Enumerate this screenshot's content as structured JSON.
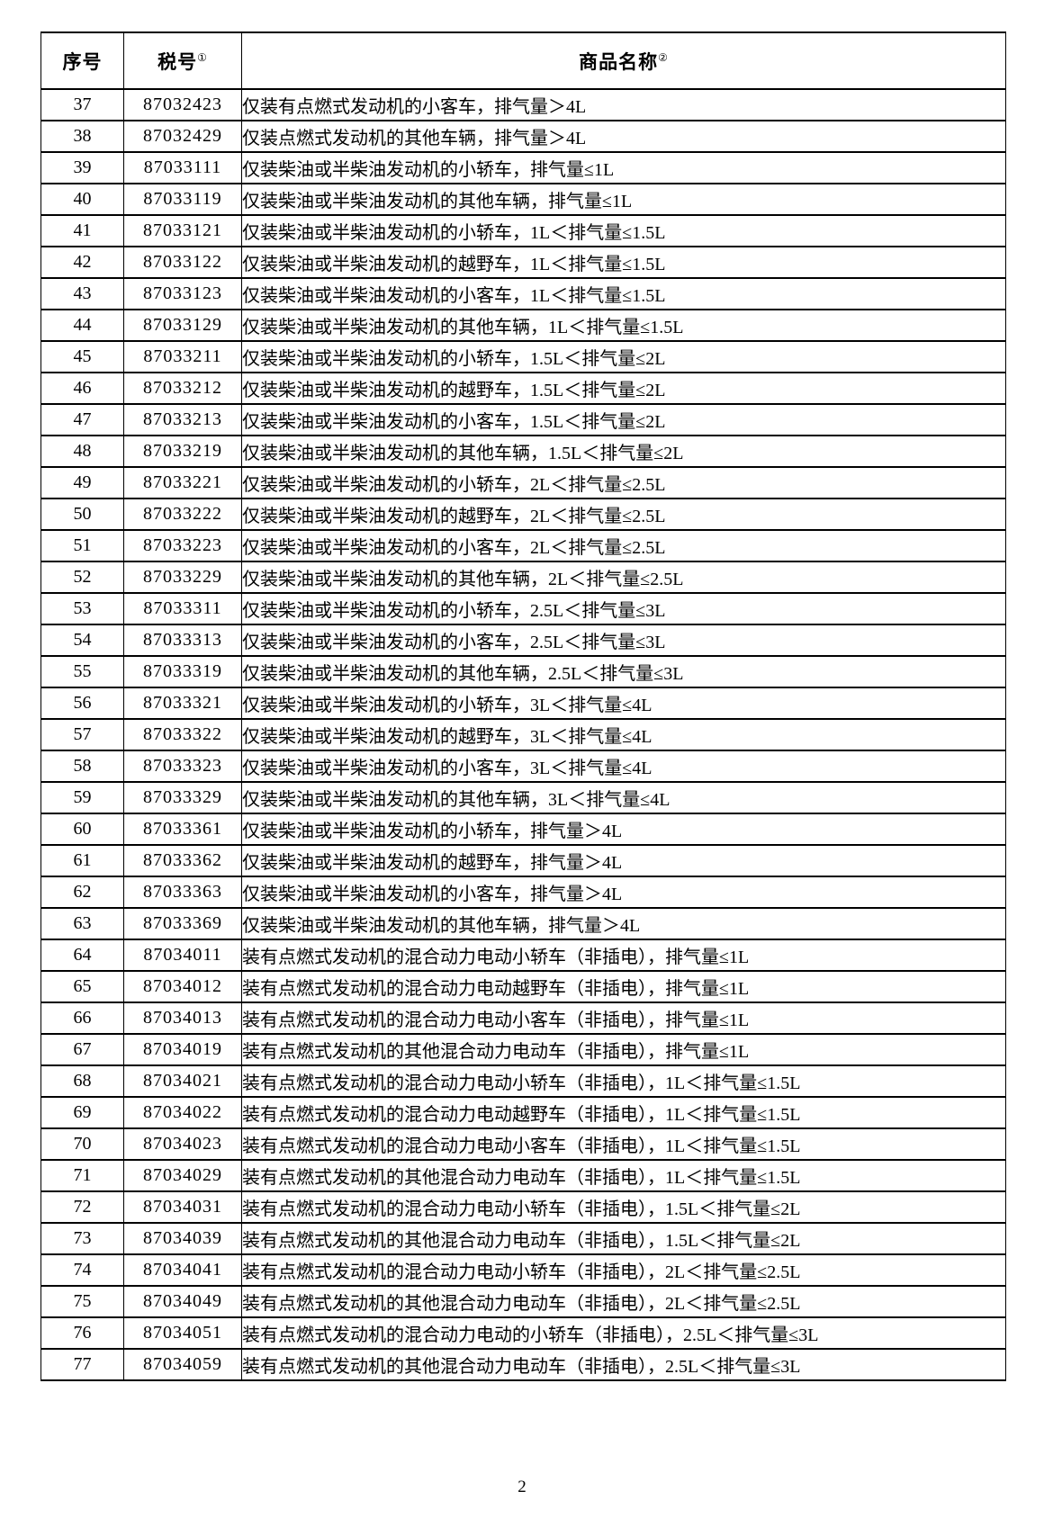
{
  "document": {
    "page_number": "2"
  },
  "table": {
    "header": {
      "no": "序号",
      "code": "税号",
      "code_footnote": "①",
      "name": "商品名称",
      "name_footnote": "②"
    },
    "rows": [
      {
        "no": "37",
        "code": "87032423",
        "name": "仅装有点燃式发动机的小客车，排气量＞4L"
      },
      {
        "no": "38",
        "code": "87032429",
        "name": "仅装点燃式发动机的其他车辆，排气量＞4L"
      },
      {
        "no": "39",
        "code": "87033111",
        "name": "仅装柴油或半柴油发动机的小轿车，排气量≤1L"
      },
      {
        "no": "40",
        "code": "87033119",
        "name": "仅装柴油或半柴油发动机的其他车辆，排气量≤1L"
      },
      {
        "no": "41",
        "code": "87033121",
        "name": "仅装柴油或半柴油发动机的小轿车，1L＜排气量≤1.5L"
      },
      {
        "no": "42",
        "code": "87033122",
        "name": "仅装柴油或半柴油发动机的越野车，1L＜排气量≤1.5L"
      },
      {
        "no": "43",
        "code": "87033123",
        "name": "仅装柴油或半柴油发动机的小客车，1L＜排气量≤1.5L"
      },
      {
        "no": "44",
        "code": "87033129",
        "name": "仅装柴油或半柴油发动机的其他车辆，1L＜排气量≤1.5L"
      },
      {
        "no": "45",
        "code": "87033211",
        "name": "仅装柴油或半柴油发动机的小轿车，1.5L＜排气量≤2L"
      },
      {
        "no": "46",
        "code": "87033212",
        "name": "仅装柴油或半柴油发动机的越野车，1.5L＜排气量≤2L"
      },
      {
        "no": "47",
        "code": "87033213",
        "name": "仅装柴油或半柴油发动机的小客车，1.5L＜排气量≤2L"
      },
      {
        "no": "48",
        "code": "87033219",
        "name": "仅装柴油或半柴油发动机的其他车辆，1.5L＜排气量≤2L"
      },
      {
        "no": "49",
        "code": "87033221",
        "name": "仅装柴油或半柴油发动机的小轿车，2L＜排气量≤2.5L"
      },
      {
        "no": "50",
        "code": "87033222",
        "name": "仅装柴油或半柴油发动机的越野车，2L＜排气量≤2.5L"
      },
      {
        "no": "51",
        "code": "87033223",
        "name": "仅装柴油或半柴油发动机的小客车，2L＜排气量≤2.5L"
      },
      {
        "no": "52",
        "code": "87033229",
        "name": "仅装柴油或半柴油发动机的其他车辆，2L＜排气量≤2.5L"
      },
      {
        "no": "53",
        "code": "87033311",
        "name": "仅装柴油或半柴油发动机的小轿车，2.5L＜排气量≤3L"
      },
      {
        "no": "54",
        "code": "87033313",
        "name": "仅装柴油或半柴油发动机的小客车，2.5L＜排气量≤3L"
      },
      {
        "no": "55",
        "code": "87033319",
        "name": "仅装柴油或半柴油发动机的其他车辆，2.5L＜排气量≤3L"
      },
      {
        "no": "56",
        "code": "87033321",
        "name": "仅装柴油或半柴油发动机的小轿车，3L＜排气量≤4L"
      },
      {
        "no": "57",
        "code": "87033322",
        "name": "仅装柴油或半柴油发动机的越野车，3L＜排气量≤4L"
      },
      {
        "no": "58",
        "code": "87033323",
        "name": "仅装柴油或半柴油发动机的小客车，3L＜排气量≤4L"
      },
      {
        "no": "59",
        "code": "87033329",
        "name": "仅装柴油或半柴油发动机的其他车辆，3L＜排气量≤4L"
      },
      {
        "no": "60",
        "code": "87033361",
        "name": "仅装柴油或半柴油发动机的小轿车，排气量＞4L"
      },
      {
        "no": "61",
        "code": "87033362",
        "name": "仅装柴油或半柴油发动机的越野车，排气量＞4L"
      },
      {
        "no": "62",
        "code": "87033363",
        "name": "仅装柴油或半柴油发动机的小客车，排气量＞4L"
      },
      {
        "no": "63",
        "code": "87033369",
        "name": "仅装柴油或半柴油发动机的其他车辆，排气量＞4L"
      },
      {
        "no": "64",
        "code": "87034011",
        "name": "装有点燃式发动机的混合动力电动小轿车（非插电），排气量≤1L"
      },
      {
        "no": "65",
        "code": "87034012",
        "name": "装有点燃式发动机的混合动力电动越野车（非插电），排气量≤1L"
      },
      {
        "no": "66",
        "code": "87034013",
        "name": "装有点燃式发动机的混合动力电动小客车（非插电），排气量≤1L"
      },
      {
        "no": "67",
        "code": "87034019",
        "name": "装有点燃式发动机的其他混合动力电动车（非插电），排气量≤1L"
      },
      {
        "no": "68",
        "code": "87034021",
        "name": "装有点燃式发动机的混合动力电动小轿车（非插电），1L＜排气量≤1.5L"
      },
      {
        "no": "69",
        "code": "87034022",
        "name": "装有点燃式发动机的混合动力电动越野车（非插电），1L＜排气量≤1.5L"
      },
      {
        "no": "70",
        "code": "87034023",
        "name": "装有点燃式发动机的混合动力电动小客车（非插电），1L＜排气量≤1.5L"
      },
      {
        "no": "71",
        "code": "87034029",
        "name": "装有点燃式发动机的其他混合动力电动车（非插电），1L＜排气量≤1.5L"
      },
      {
        "no": "72",
        "code": "87034031",
        "name": "装有点燃式发动机的混合动力电动小轿车（非插电），1.5L＜排气量≤2L"
      },
      {
        "no": "73",
        "code": "87034039",
        "name": "装有点燃式发动机的其他混合动力电动车（非插电），1.5L＜排气量≤2L"
      },
      {
        "no": "74",
        "code": "87034041",
        "name": "装有点燃式发动机的混合动力电动小轿车（非插电），2L＜排气量≤2.5L"
      },
      {
        "no": "75",
        "code": "87034049",
        "name": "装有点燃式发动机的其他混合动力电动车（非插电），2L＜排气量≤2.5L"
      },
      {
        "no": "76",
        "code": "87034051",
        "name": "装有点燃式发动机的混合动力电动的小轿车（非插电），2.5L＜排气量≤3L"
      },
      {
        "no": "77",
        "code": "87034059",
        "name": "装有点燃式发动机的其他混合动力电动车（非插电），2.5L＜排气量≤3L"
      }
    ]
  }
}
